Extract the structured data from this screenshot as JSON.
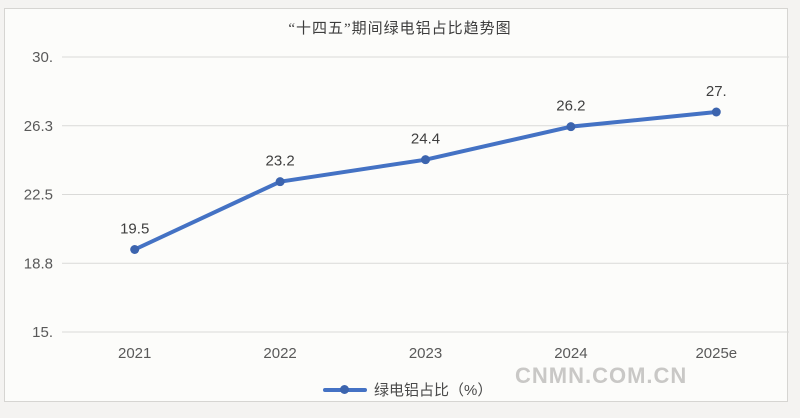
{
  "chart": {
    "legend_label": "绿电铝占比（%）",
    "watermark": "CNMN.COM.CN",
    "colors": {
      "line": "#4472c4",
      "marker": "#3c64ae",
      "grid": "#dadad8",
      "axis_text": "#595959",
      "label_text": "#3f3f3f"
    }
  },
  "chart_data": {
    "type": "line",
    "title": "“十四五”期间绿电铝占比趋势图",
    "categories": [
      "2021",
      "2022",
      "2023",
      "2024",
      "2025e"
    ],
    "values": [
      19.5,
      23.2,
      24.4,
      26.2,
      27
    ],
    "value_labels": [
      "19.5",
      "23.2",
      "24.4",
      "26.2",
      "27."
    ],
    "series_name": "绿电铝占比（%）",
    "ylim": [
      15,
      30
    ],
    "yticks": [
      15,
      18.75,
      22.5,
      26.25,
      30
    ],
    "ytick_labels": [
      "15.",
      "18.8",
      "22.5",
      "26.3",
      "30."
    ],
    "grid": true,
    "legend_position": "bottom"
  }
}
